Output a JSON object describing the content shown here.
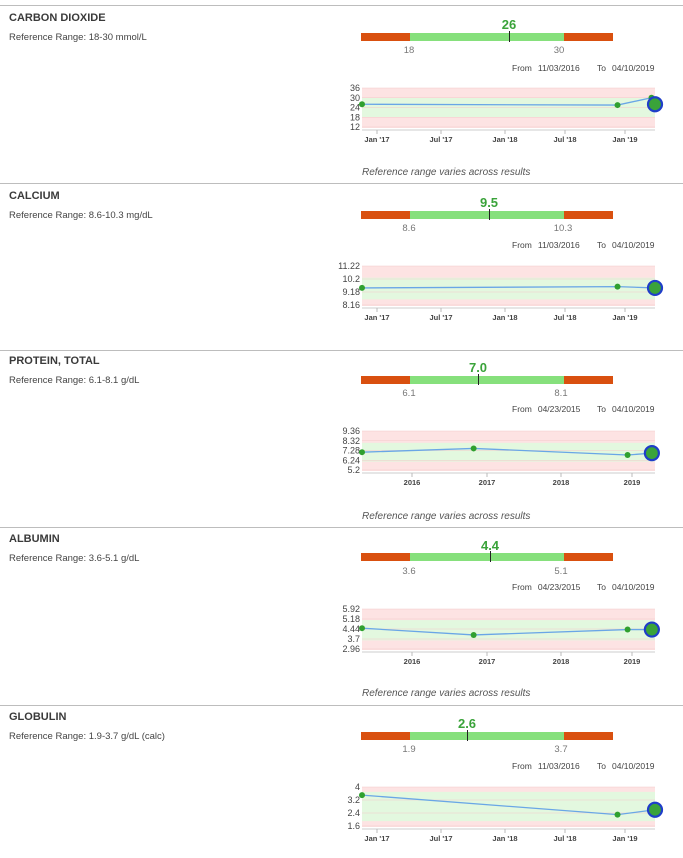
{
  "shared": {
    "from_label": "From",
    "to_label": "To",
    "range_note": "Reference range varies across results"
  },
  "colors": {
    "out_of_range": "#d9500f",
    "in_range": "#86e07c",
    "value": "#3aa33a",
    "line": "#6aa6e6",
    "marker_ring": "#1f3ec9"
  },
  "sections": [
    {
      "name": "CARBON DIOXIDE",
      "reference": "Reference Range: 18-30 mmol/L",
      "value": "26",
      "range_low": "18",
      "range_high": "30",
      "from": "11/03/2016",
      "to": "04/10/2019",
      "note": "Reference range varies across results"
    },
    {
      "name": "CALCIUM",
      "reference": "Reference Range: 8.6-10.3 mg/dL",
      "value": "9.5",
      "range_low": "8.6",
      "range_high": "10.3",
      "from": "11/03/2016",
      "to": "04/10/2019",
      "note": ""
    },
    {
      "name": "PROTEIN, TOTAL",
      "reference": "Reference Range: 6.1-8.1 g/dL",
      "value": "7.0",
      "range_low": "6.1",
      "range_high": "8.1",
      "from": "04/23/2015",
      "to": "04/10/2019",
      "note": "Reference range varies across results"
    },
    {
      "name": "ALBUMIN",
      "reference": "Reference Range: 3.6-5.1 g/dL",
      "value": "4.4",
      "range_low": "3.6",
      "range_high": "5.1",
      "from": "04/23/2015",
      "to": "04/10/2019",
      "note": "Reference range varies across results"
    },
    {
      "name": "GLOBULIN",
      "reference": "Reference Range: 1.9-3.7 g/dL (calc)",
      "value": "2.6",
      "range_low": "1.9",
      "range_high": "3.7",
      "from": "11/03/2016",
      "to": "04/10/2019",
      "note": ""
    }
  ],
  "chart_data": [
    {
      "type": "line",
      "series_label": "CARBON DIOXIDE",
      "x_tick_labels": [
        "Jan '17",
        "Jul '17",
        "Jan '18",
        "Jul '18",
        "Jan '19"
      ],
      "y_tick_labels": [
        "36",
        "30",
        "24",
        "18",
        "12"
      ],
      "ylim": [
        12,
        36
      ],
      "normal_range": [
        18,
        30
      ],
      "x": [
        "2016-11-03",
        "2018-12-10",
        "2019-03-20",
        "2019-04-10"
      ],
      "y": [
        26,
        25.5,
        30,
        26
      ]
    },
    {
      "type": "line",
      "series_label": "CALCIUM",
      "x_tick_labels": [
        "Jan '17",
        "Jul '17",
        "Jan '18",
        "Jul '18",
        "Jan '19"
      ],
      "y_tick_labels": [
        "11.22",
        "10.2",
        "9.18",
        "8.16"
      ],
      "ylim": [
        8.16,
        11.22
      ],
      "normal_range": [
        8.6,
        10.3
      ],
      "x": [
        "2016-11-03",
        "2018-12-10",
        "2019-04-10"
      ],
      "y": [
        9.5,
        9.6,
        9.5
      ]
    },
    {
      "type": "line",
      "series_label": "PROTEIN, TOTAL",
      "x_tick_labels": [
        "2016",
        "2017",
        "2018",
        "2019"
      ],
      "y_tick_labels": [
        "9.36",
        "8.32",
        "7.28",
        "6.24",
        "5.2"
      ],
      "ylim": [
        5.2,
        9.36
      ],
      "normal_range": [
        6.1,
        8.1
      ],
      "x": [
        "2015-04-23",
        "2016-11-03",
        "2018-12-10",
        "2019-04-10"
      ],
      "y": [
        7.1,
        7.5,
        6.8,
        7.0
      ]
    },
    {
      "type": "line",
      "series_label": "ALBUMIN",
      "x_tick_labels": [
        "2016",
        "2017",
        "2018",
        "2019"
      ],
      "y_tick_labels": [
        "5.92",
        "5.18",
        "4.44",
        "3.7",
        "2.96"
      ],
      "ylim": [
        2.96,
        5.92
      ],
      "normal_range": [
        3.6,
        5.1
      ],
      "x": [
        "2015-04-23",
        "2016-11-03",
        "2018-12-10",
        "2019-04-10"
      ],
      "y": [
        4.5,
        4.0,
        4.4,
        4.4
      ]
    },
    {
      "type": "line",
      "series_label": "GLOBULIN",
      "x_tick_labels": [
        "Jan '17",
        "Jul '17",
        "Jan '18",
        "Jul '18",
        "Jan '19"
      ],
      "y_tick_labels": [
        "4",
        "3.2",
        "2.4",
        "1.6"
      ],
      "ylim": [
        1.6,
        4
      ],
      "normal_range": [
        1.9,
        3.7
      ],
      "x": [
        "2016-11-03",
        "2018-12-10",
        "2019-04-10"
      ],
      "y": [
        3.5,
        2.3,
        2.6
      ]
    }
  ]
}
